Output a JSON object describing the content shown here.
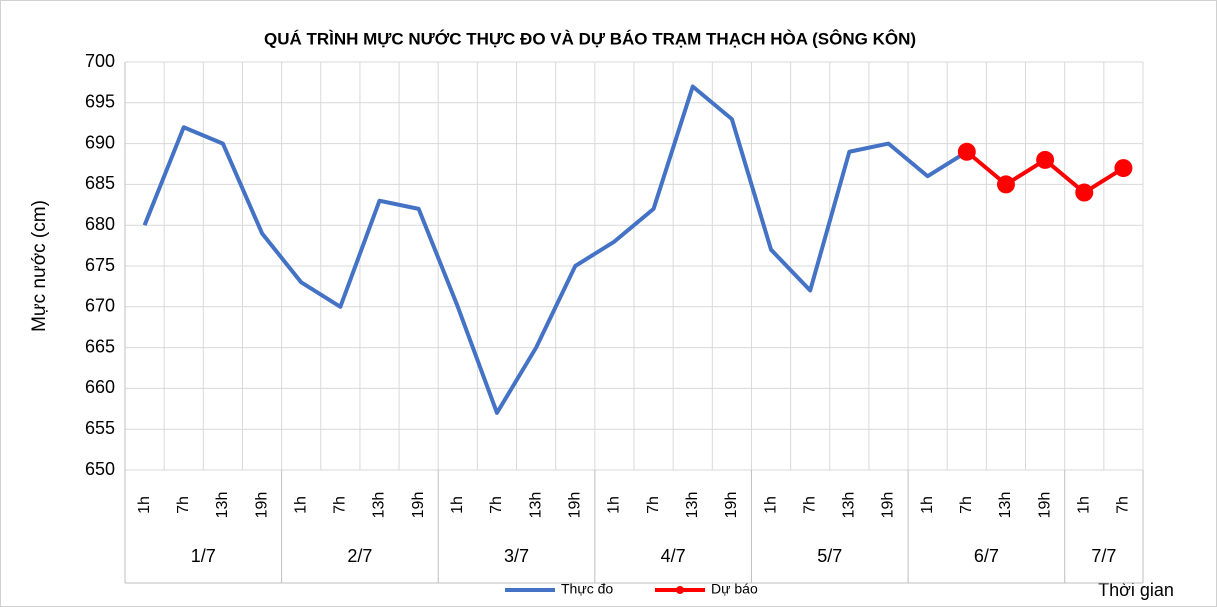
{
  "chart_data": {
    "type": "line",
    "title": "QUÁ TRÌNH MỰC NƯỚC THỰC ĐO VÀ DỰ BÁO TRẠM THẠCH HÒA (SÔNG KÔN)",
    "y_label": "Mực nước (cm)",
    "x_label": "Thời gian",
    "category_groups": [
      {
        "label": "1/7",
        "categories": [
          "1h",
          "7h",
          "13h",
          "19h"
        ]
      },
      {
        "label": "2/7",
        "categories": [
          "1h",
          "7h",
          "13h",
          "19h"
        ]
      },
      {
        "label": "3/7",
        "categories": [
          "1h",
          "7h",
          "13h",
          "19h"
        ]
      },
      {
        "label": "4/7",
        "categories": [
          "1h",
          "7h",
          "13h",
          "19h"
        ]
      },
      {
        "label": "5/7",
        "categories": [
          "1h",
          "7h",
          "13h",
          "19h"
        ]
      },
      {
        "label": "6/7",
        "categories": [
          "1h",
          "7h",
          "13h",
          "19h"
        ]
      },
      {
        "label": "7/7",
        "categories": [
          "1h",
          "7h"
        ]
      }
    ],
    "series": [
      {
        "name": "Thực đo",
        "color": "#4472c4",
        "markers": false,
        "values": [
          680,
          692,
          690,
          679,
          673,
          670,
          683,
          682,
          670,
          657,
          665,
          675,
          678,
          682,
          697,
          693,
          677,
          672,
          689,
          690,
          686,
          689,
          null,
          null,
          null,
          null
        ]
      },
      {
        "name": "Dự báo",
        "color": "#ff0000",
        "markers": true,
        "values": [
          null,
          null,
          null,
          null,
          null,
          null,
          null,
          null,
          null,
          null,
          null,
          null,
          null,
          null,
          null,
          null,
          null,
          null,
          null,
          null,
          null,
          689,
          685,
          688,
          684,
          687
        ]
      }
    ],
    "ylim": [
      650,
      700
    ],
    "yticks": [
      650,
      655,
      660,
      665,
      670,
      675,
      680,
      685,
      690,
      695,
      700
    ],
    "grid": true,
    "legend": "bottom"
  }
}
